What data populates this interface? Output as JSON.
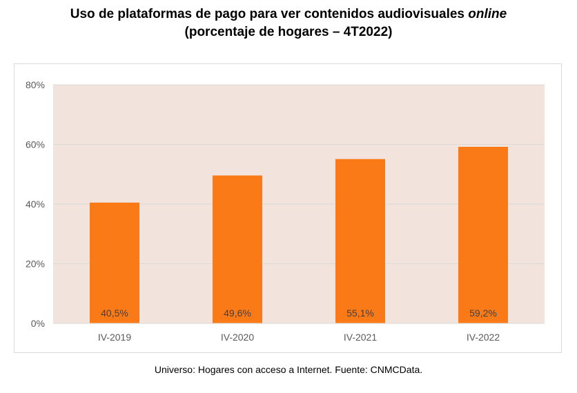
{
  "title": {
    "line1_main": "Uso de plataformas de pago para ver contenidos audiovisuales ",
    "line1_italic": "online",
    "line2": "(porcentaje de hogares – 4T2022)"
  },
  "footnote": "Universo: Hogares con acceso a Internet. Fuente: CNMCData.",
  "colors": {
    "bar": "#FA7A18",
    "plot_background": "#F2E4DD",
    "grid": "#D9D9D9",
    "axis_text": "#595959",
    "data_label": "#404040"
  },
  "chart_data": {
    "type": "bar",
    "title": "Uso de plataformas de pago para ver contenidos audiovisuales online (porcentaje de hogares – 4T2022)",
    "categories": [
      "IV-2019",
      "IV-2020",
      "IV-2021",
      "IV-2022"
    ],
    "values": [
      40.5,
      49.6,
      55.1,
      59.2
    ],
    "data_labels": [
      "40,5%",
      "49,6%",
      "55,1%",
      "59,2%"
    ],
    "ylim": [
      0,
      80
    ],
    "yticks": [
      0,
      20,
      40,
      60,
      80
    ],
    "ytick_labels": [
      "0%",
      "20%",
      "40%",
      "60%",
      "80%"
    ],
    "xlabel": "",
    "ylabel": "",
    "grid": true,
    "legend": false
  }
}
